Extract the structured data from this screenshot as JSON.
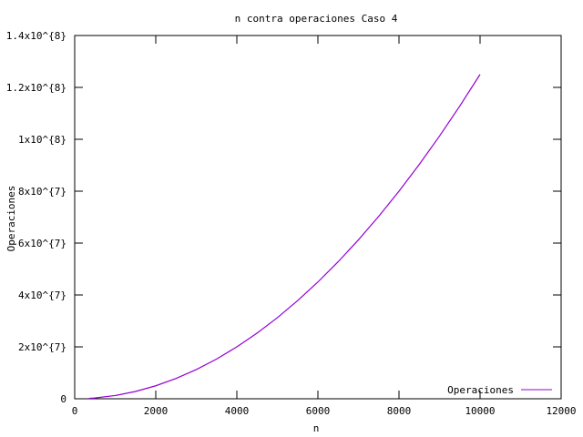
{
  "chart_data": {
    "type": "line",
    "title": "n contra operaciones Caso 4",
    "xlabel": "n",
    "ylabel": "Operaciones",
    "xlim": [
      0,
      12000
    ],
    "ylim": [
      0,
      140000000
    ],
    "x_ticks": [
      0,
      2000,
      4000,
      6000,
      8000,
      10000,
      12000
    ],
    "x_tick_labels": [
      "0",
      "2000",
      "4000",
      "6000",
      "8000",
      "10000",
      "12000"
    ],
    "y_ticks": [
      0,
      20000000,
      40000000,
      60000000,
      80000000,
      100000000,
      120000000,
      140000000
    ],
    "y_tick_labels": [
      "0",
      "2x10^{7}",
      "4x10^{7}",
      "6x10^{7}",
      "8x10^{7}",
      "1x10^{8}",
      "1.2x10^{8}",
      "1.4x10^{8}"
    ],
    "grid": false,
    "legend_position": "bottom-right",
    "series": [
      {
        "name": "Operaciones",
        "color": "#9400d3",
        "x": [
          350,
          500,
          1000,
          1500,
          2000,
          2500,
          3000,
          3500,
          4000,
          4500,
          5000,
          5500,
          6000,
          6500,
          7000,
          7500,
          8000,
          8500,
          9000,
          9500,
          10000
        ],
        "y": [
          153125,
          312500,
          1250000,
          2812500,
          5000000,
          7812500,
          11250000,
          15312500,
          20000000,
          25312500,
          31250000,
          37812500,
          45000000,
          52812500,
          61250000,
          70312500,
          80000000,
          90312500,
          101250000,
          112812500,
          125000000
        ]
      }
    ]
  }
}
